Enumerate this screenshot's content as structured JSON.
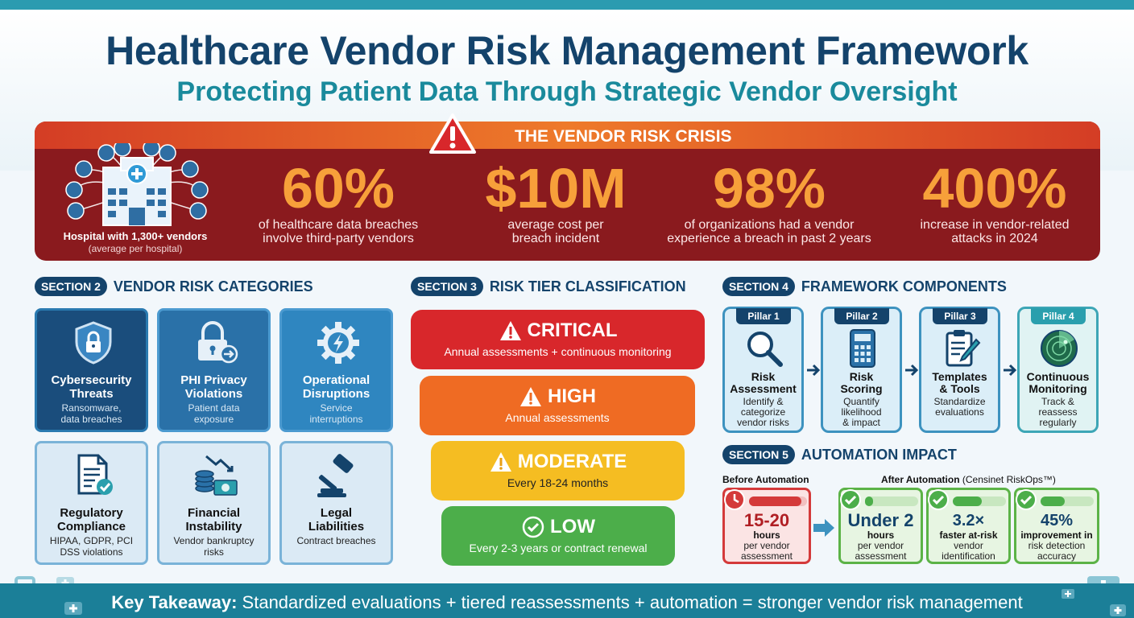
{
  "title": "Healthcare Vendor Risk Management Framework",
  "subtitle": "Protecting Patient Data Through Strategic Vendor Oversight",
  "crisis": {
    "heading": "THE VENDOR RISK CRISIS",
    "hospital_label": "Hospital with 1,300+ vendors",
    "hospital_sub": "(average per hospital)",
    "stats": [
      {
        "value": "60%",
        "line1": "of healthcare data breaches",
        "line2": "involve third-party vendors"
      },
      {
        "value": "$10M",
        "line1": "average cost per",
        "line2": "breach incident"
      },
      {
        "value": "98%",
        "line1": "of organizations had a vendor",
        "line2": "experience a breach in past 2 years"
      },
      {
        "value": "400%",
        "line1": "increase in vendor-related",
        "line2": "attacks in 2024"
      }
    ]
  },
  "section2": {
    "tag": "SECTION 2",
    "title": "VENDOR RISK CATEGORIES",
    "cards": [
      {
        "l1": "Cybersecurity",
        "l2": "Threats",
        "d1": "Ransomware,",
        "d2": "data breaches",
        "icon": "shield-lock-icon"
      },
      {
        "l1": "PHI Privacy",
        "l2": "Violations",
        "d1": "Patient data",
        "d2": "exposure",
        "icon": "padlock-arrow-icon"
      },
      {
        "l1": "Operational",
        "l2": "Disruptions",
        "d1": "Service",
        "d2": "interruptions",
        "icon": "gear-bolt-icon"
      },
      {
        "l1": "Regulatory",
        "l2": "Compliance",
        "d1": "HIPAA, GDPR, PCI",
        "d2": "DSS violations",
        "icon": "document-check-icon"
      },
      {
        "l1": "Financial",
        "l2": "Instability",
        "d1": "Vendor bankruptcy",
        "d2": "risks",
        "icon": "money-down-icon"
      },
      {
        "l1": "Legal",
        "l2": "Liabilities",
        "d1": "Contract breaches",
        "d2": "",
        "icon": "gavel-icon"
      }
    ]
  },
  "section3": {
    "tag": "SECTION 3",
    "title": "RISK TIER CLASSIFICATION",
    "tiers": [
      {
        "name": "CRITICAL",
        "desc": "Annual assessments + continuous monitoring",
        "color": "#d8272b"
      },
      {
        "name": "HIGH",
        "desc": "Annual assessments",
        "color": "#ef6b23"
      },
      {
        "name": "MODERATE",
        "desc": "Every 18-24 months",
        "color": "#f5bd22"
      },
      {
        "name": "LOW",
        "desc": "Every 2-3 years or contract renewal",
        "color": "#4cae4a"
      }
    ]
  },
  "section4": {
    "tag": "SECTION 4",
    "title": "FRAMEWORK COMPONENTS",
    "pillars": [
      {
        "tag": "Pillar 1",
        "l1": "Risk",
        "l2": "Assessment",
        "d1": "Identify &",
        "d2": "categorize",
        "d3": "vendor risks",
        "icon": "magnifier-icon"
      },
      {
        "tag": "Pillar 2",
        "l1": "Risk",
        "l2": "Scoring",
        "d1": "Quantify",
        "d2": "likelihood",
        "d3": "& impact",
        "icon": "calculator-icon"
      },
      {
        "tag": "Pillar 3",
        "l1": "Templates",
        "l2": "& Tools",
        "d1": "Standardize",
        "d2": "evaluations",
        "d3": "",
        "icon": "clipboard-pen-icon"
      },
      {
        "tag": "Pillar 4",
        "l1": "Continuous",
        "l2": "Monitoring",
        "d1": "Track &",
        "d2": "reassess",
        "d3": "regularly",
        "icon": "radar-icon"
      }
    ]
  },
  "section5": {
    "tag": "SECTION 5",
    "title": "AUTOMATION IMPACT",
    "before_label": "Before Automation",
    "after_label": "After Automation",
    "after_product": "(Censinet RiskOps™)",
    "before": {
      "value": "15-20",
      "s1": "hours",
      "s2": "per vendor",
      "s3": "assessment",
      "bar_fill": 0.9
    },
    "after": [
      {
        "value": "Under 2",
        "s1": "hours",
        "s2": "per vendor",
        "s3": "assessment",
        "bar_fill": 0.15
      },
      {
        "value": "3.2×",
        "s1": "faster at-risk",
        "s2": "vendor",
        "s3": "identification",
        "bar_fill": 0.55
      },
      {
        "value": "45%",
        "s1": "improvement in",
        "s2": "risk detection",
        "s3": "accuracy",
        "bar_fill": 0.45
      }
    ]
  },
  "takeaway": {
    "label": "Key Takeaway:",
    "text": "Standardized evaluations + tiered reassessments + automation = stronger vendor risk management"
  }
}
